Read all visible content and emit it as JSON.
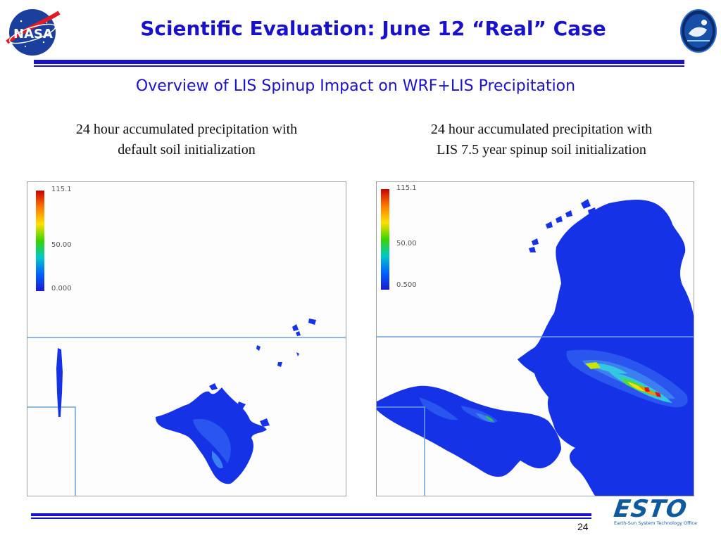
{
  "header": {
    "title": "Scientific Evaluation: June 12 “Real” Case",
    "nasa_logo_text": "NASA"
  },
  "subtitle": "Overview of LIS Spinup Impact on WRF+LIS Precipitation",
  "panels": {
    "left": {
      "caption_line1": "24 hour accumulated precipitation with",
      "caption_line2": "default soil initialization",
      "colorbar": {
        "max": "115.1",
        "mid": "50.00",
        "min": "0.000"
      }
    },
    "right": {
      "caption_line1": "24 hour accumulated precipitation with",
      "caption_line2": "LIS 7.5 year spinup soil initialization",
      "colorbar": {
        "max": "115.1",
        "mid": "50.00",
        "min": "0.500"
      }
    }
  },
  "footer": {
    "page_number": "24",
    "esto_logo_text": "ESTO",
    "esto_tagline": "Earth-Sun System Technology Office"
  },
  "colors": {
    "title_blue": "#1a12c8",
    "rule_blue": "#1a12c8",
    "precip_blue": "#1532e6",
    "border_line": "#6aa0d8"
  }
}
